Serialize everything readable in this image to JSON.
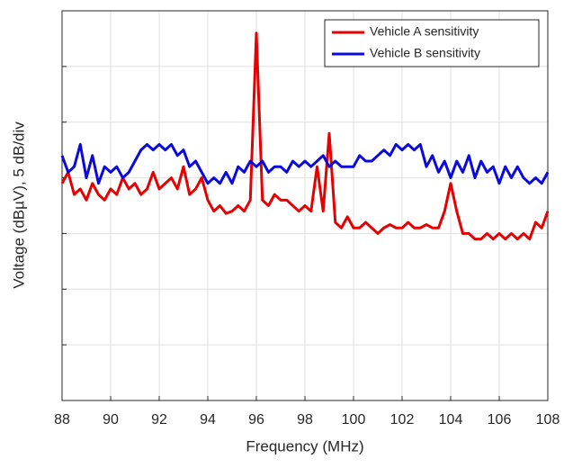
{
  "chart_data": {
    "type": "line",
    "xlabel": "Frequency (MHz)",
    "ylabel": "Voltage (dBµV), 5 dB/div",
    "x": [
      88,
      88.25,
      88.5,
      88.75,
      89,
      89.25,
      89.5,
      89.75,
      90,
      90.25,
      90.5,
      90.75,
      91,
      91.25,
      91.5,
      91.75,
      92,
      92.25,
      92.5,
      92.75,
      93,
      93.25,
      93.5,
      93.75,
      94,
      94.25,
      94.5,
      94.75,
      95,
      95.25,
      95.5,
      95.75,
      96,
      96.25,
      96.5,
      96.75,
      97,
      97.25,
      97.5,
      97.75,
      98,
      98.25,
      98.5,
      98.75,
      99,
      99.25,
      99.5,
      99.75,
      100,
      100.25,
      100.5,
      100.75,
      101,
      101.25,
      101.5,
      101.75,
      102,
      102.25,
      102.5,
      102.75,
      103,
      103.25,
      103.5,
      103.75,
      104,
      104.25,
      104.5,
      104.75,
      105,
      105.25,
      105.5,
      105.75,
      106,
      106.25,
      106.5,
      106.75,
      107,
      107.25,
      107.5,
      107.75,
      108
    ],
    "series": [
      {
        "name": "Vehicle A sensitivity",
        "color": "#e60000",
        "values": [
          19.5,
          20.5,
          18.5,
          19,
          18,
          19.5,
          18.5,
          18,
          19,
          18.5,
          20,
          19,
          19.5,
          18.5,
          19,
          20.5,
          19,
          19.5,
          20,
          19,
          21,
          18.5,
          19,
          20,
          18,
          17,
          17.5,
          16.8,
          17,
          17.5,
          17,
          18,
          33,
          18,
          17.5,
          18.5,
          18,
          18,
          17.5,
          17,
          17.5,
          17,
          21,
          17,
          24,
          16,
          15.5,
          16.5,
          15.5,
          15.5,
          16,
          15.5,
          15,
          15.5,
          15.8,
          15.5,
          15.5,
          16,
          15.5,
          15.5,
          15.8,
          15.5,
          15.5,
          17,
          19.5,
          17,
          15,
          15,
          14.5,
          14.5,
          15,
          14.5,
          15,
          14.5,
          15,
          14.5,
          15,
          14.5,
          16,
          15.5,
          17
        ]
      },
      {
        "name": "Vehicle B sensitivity",
        "color": "#0a0adc",
        "values": [
          22,
          20.5,
          21,
          23,
          20,
          22,
          19.5,
          21,
          20.5,
          21,
          20,
          20.5,
          21.5,
          22.5,
          23,
          22.5,
          23,
          22.5,
          23,
          22,
          22.5,
          21,
          21.5,
          20.5,
          19.5,
          20,
          19.5,
          20.5,
          19.5,
          21,
          20.5,
          21.5,
          21,
          21.5,
          20.5,
          21,
          21,
          20.5,
          21.5,
          21,
          21.5,
          21,
          21.5,
          22,
          21,
          21.5,
          21,
          21,
          21,
          22,
          21.5,
          21.5,
          22,
          22.5,
          22,
          23,
          22.5,
          23,
          22.5,
          23,
          21,
          22,
          20.5,
          21.5,
          20,
          21.5,
          20.5,
          22,
          20,
          21.5,
          20.5,
          21,
          19.5,
          21,
          20,
          21,
          20,
          19.5,
          20,
          19.5,
          20.5
        ]
      }
    ],
    "xlim": [
      88,
      108
    ],
    "xticks": [
      88,
      90,
      92,
      94,
      96,
      98,
      100,
      102,
      104,
      106,
      108
    ],
    "ylim": [
      0,
      35
    ],
    "yticks": [
      0,
      5,
      10,
      15,
      20,
      25,
      30,
      35
    ],
    "ytick_labels": false,
    "grid": true,
    "legend": "upper right"
  }
}
